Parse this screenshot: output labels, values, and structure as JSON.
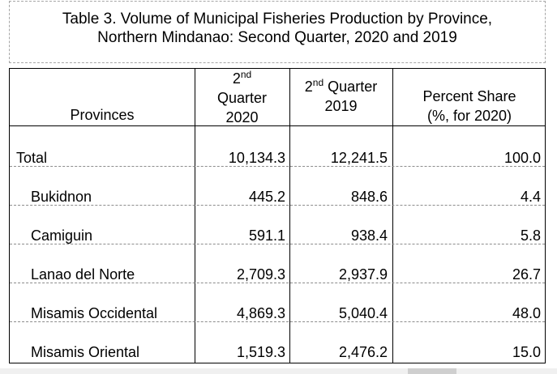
{
  "table": {
    "title_line1": "Table 3.  Volume of Municipal Fisheries Production by Province,",
    "title_line2": "Northern Mindanao: Second Quarter, 2020 and 2019",
    "headers": {
      "provinces": "Provinces",
      "q2020_sup": "nd",
      "q2020_num": "2",
      "q2020_word": "Quarter",
      "q2020_year": "2020",
      "q2019_num": "2",
      "q2019_sup": "nd",
      "q2019_word": "Quarter",
      "q2019_year": "2019",
      "share_line1": "Percent Share",
      "share_line2": "(%, for 2020)"
    },
    "rows": [
      {
        "province": "Total",
        "q2020": "10,134.3",
        "q2019": "12,241.5",
        "share": "100.0"
      },
      {
        "province": "Bukidnon",
        "q2020": "445.2",
        "q2019": "848.6",
        "share": "4.4"
      },
      {
        "province": "Camiguin",
        "q2020": "591.1",
        "q2019": "938.4",
        "share": "5.8"
      },
      {
        "province": "Lanao del Norte",
        "q2020": "2,709.3",
        "q2019": "2,937.9",
        "share": "26.7"
      },
      {
        "province": "Misamis Occidental",
        "q2020": "4,869.3",
        "q2019": "5,040.4",
        "share": "48.0"
      },
      {
        "province": "Misamis Oriental",
        "q2020": "1,519.3",
        "q2019": "2,476.2",
        "share": "15.0"
      }
    ]
  }
}
